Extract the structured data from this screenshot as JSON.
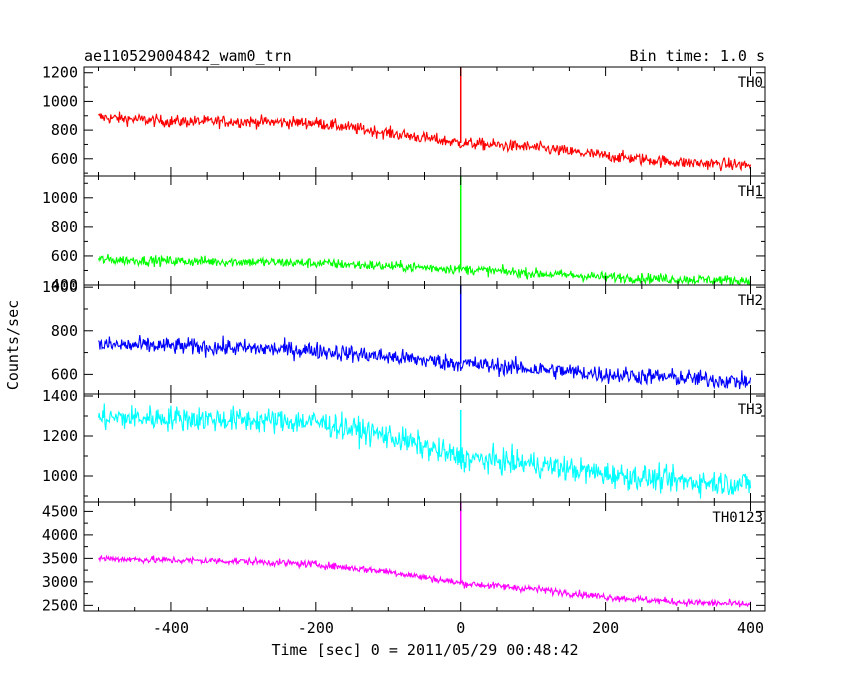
{
  "header": {
    "title": "ae110529004842_wam0_trn",
    "bin_time": "Bin time: 1.0 s"
  },
  "chart_data": {
    "type": "line",
    "xlabel": "Time [sec] 0 = 2011/05/29 00:48:42",
    "ylabel": "Counts/sec",
    "xlim": [
      -520,
      420
    ],
    "xticks": [
      -400,
      -200,
      0,
      200,
      400
    ],
    "x_start": -500,
    "x_end": 400,
    "event_time": 0,
    "panels": [
      {
        "name": "TH0",
        "color": "#ff0000",
        "ylim": [
          480,
          1240
        ],
        "yticks": [
          600,
          800,
          1000,
          1200
        ],
        "trend": [
          [
            -500,
            890
          ],
          [
            -400,
            860
          ],
          [
            -300,
            860
          ],
          [
            -200,
            850
          ],
          [
            -100,
            780
          ],
          [
            0,
            710
          ],
          [
            100,
            680
          ],
          [
            200,
            620
          ],
          [
            300,
            575
          ],
          [
            400,
            555
          ]
        ],
        "noise": 30,
        "spike_peak": 1240
      },
      {
        "name": "TH1",
        "color": "#00ff00",
        "ylim": [
          400,
          1150
        ],
        "yticks": [
          400,
          600,
          800,
          1000
        ],
        "trend": [
          [
            -500,
            575
          ],
          [
            -400,
            565
          ],
          [
            -300,
            560
          ],
          [
            -200,
            550
          ],
          [
            -100,
            530
          ],
          [
            0,
            510
          ],
          [
            100,
            480
          ],
          [
            200,
            455
          ],
          [
            300,
            440
          ],
          [
            400,
            430
          ]
        ],
        "noise": 25,
        "spike_peak": 1150
      },
      {
        "name": "TH2",
        "color": "#0000ff",
        "ylim": [
          510,
          1010
        ],
        "yticks": [
          600,
          800,
          1000
        ],
        "trend": [
          [
            -500,
            735
          ],
          [
            -400,
            730
          ],
          [
            -300,
            720
          ],
          [
            -200,
            710
          ],
          [
            -100,
            680
          ],
          [
            0,
            650
          ],
          [
            100,
            625
          ],
          [
            200,
            600
          ],
          [
            300,
            585
          ],
          [
            400,
            565
          ]
        ],
        "noise": 28,
        "spike_peak": 1010
      },
      {
        "name": "TH3",
        "color": "#00ffff",
        "ylim": [
          870,
          1410
        ],
        "yticks": [
          1000,
          1200,
          1400
        ],
        "trend": [
          [
            -500,
            1290
          ],
          [
            -400,
            1290
          ],
          [
            -300,
            1280
          ],
          [
            -200,
            1270
          ],
          [
            -100,
            1200
          ],
          [
            0,
            1090
          ],
          [
            100,
            1060
          ],
          [
            200,
            1010
          ],
          [
            300,
            975
          ],
          [
            400,
            960
          ]
        ],
        "noise": 45,
        "spike_peak": 1330
      },
      {
        "name": "TH0123",
        "color": "#ff00ff",
        "ylim": [
          2380,
          4700
        ],
        "yticks": [
          2500,
          3000,
          3500,
          4000,
          4500
        ],
        "trend": [
          [
            -500,
            3500
          ],
          [
            -400,
            3460
          ],
          [
            -300,
            3440
          ],
          [
            -200,
            3370
          ],
          [
            -100,
            3220
          ],
          [
            0,
            2970
          ],
          [
            100,
            2850
          ],
          [
            200,
            2680
          ],
          [
            300,
            2570
          ],
          [
            400,
            2520
          ]
        ],
        "noise": 55,
        "spike_peak": 4700
      }
    ]
  }
}
